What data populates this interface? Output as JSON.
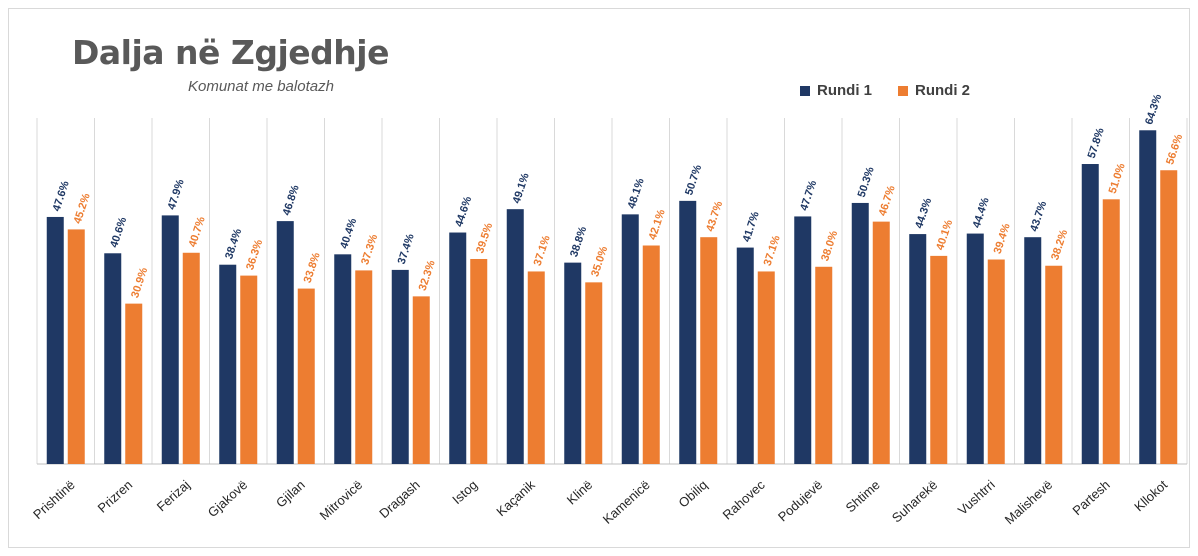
{
  "chart_data": {
    "type": "bar",
    "title": "Dalja në Zgjedhje",
    "subtitle": "Komunat me balotazh",
    "legend_position": "top-right",
    "categories": [
      "Prishtinë",
      "Prizren",
      "Ferizaj",
      "Gjakovë",
      "Gjilan",
      "Mitrovicë",
      "Dragash",
      "Istog",
      "Kaçanik",
      "Klinë",
      "Kamenicë",
      "Obiliq",
      "Rahovec",
      "Podujevë",
      "Shtime",
      "Suharekë",
      "Vushtrri",
      "Malishevë",
      "Partesh",
      "Kllokot"
    ],
    "series": [
      {
        "name": "Rundi 1",
        "color": "#1f3864",
        "values": [
          47.6,
          40.6,
          47.9,
          38.4,
          46.8,
          40.4,
          37.4,
          44.6,
          49.1,
          38.8,
          48.1,
          50.7,
          41.7,
          47.7,
          50.3,
          44.3,
          44.4,
          43.7,
          57.8,
          64.3
        ],
        "labels": [
          "47.6%",
          "40.6%",
          "47.9%",
          "38.4%",
          "46.8%",
          "40.4%",
          "37.4%",
          "44.6%",
          "49.1%",
          "38.8%",
          "48.1%",
          "50.7%",
          "41.7%",
          "47.7%",
          "50.3%",
          "44.3%",
          "44.4%",
          "43.7%",
          "57.8%",
          "64.3%"
        ]
      },
      {
        "name": "Rundi 2",
        "color": "#ed7d31",
        "values": [
          45.2,
          30.9,
          40.7,
          36.3,
          33.8,
          37.3,
          32.3,
          39.5,
          37.1,
          35.0,
          42.1,
          43.7,
          37.1,
          38.0,
          46.7,
          40.1,
          39.4,
          38.2,
          51.0,
          56.6
        ],
        "labels": [
          "45.2%",
          "30.9%",
          "40.7%",
          "36.3%",
          "33.8%",
          "37.3%",
          "32.3%",
          "39.5%",
          "37.1%",
          "35.0%",
          "42.1%",
          "43.7%",
          "37.1%",
          "38.0%",
          "46.7%",
          "40.1%",
          "39.4%",
          "38.2%",
          "51.0%",
          "56.6%"
        ]
      }
    ],
    "ylim": [
      0,
      70
    ],
    "grid": "vertical",
    "xlabel": "",
    "ylabel": ""
  }
}
